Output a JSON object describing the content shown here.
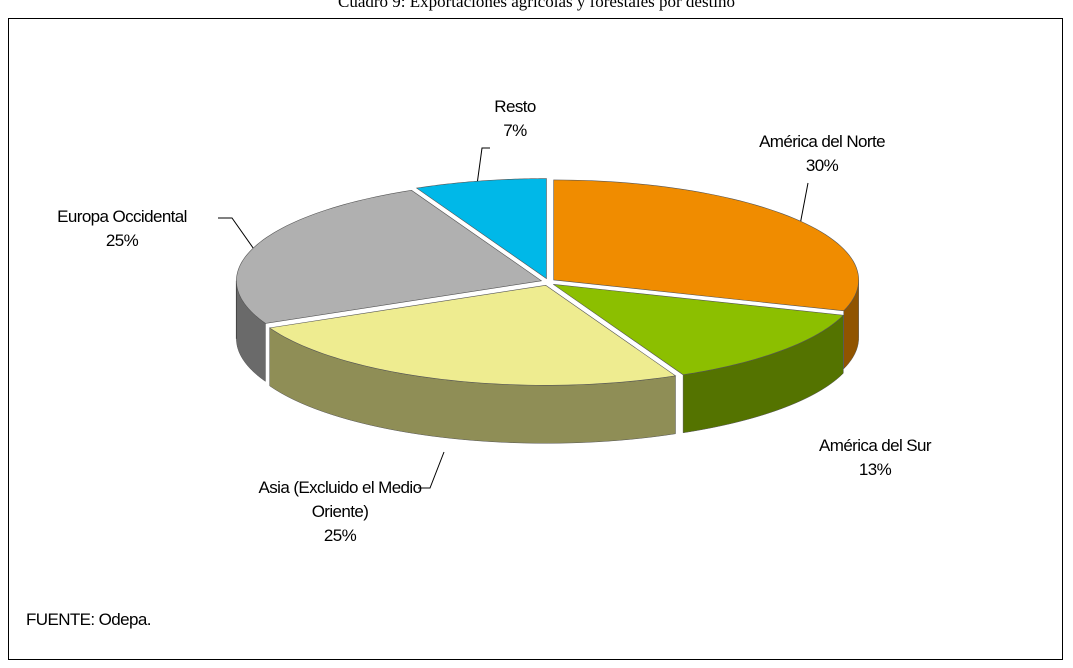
{
  "chart_data": {
    "type": "pie",
    "title": "Cuadro 9: Exportaciones agrícolas y forestales por destino",
    "categories": [
      "América del Norte",
      "América del Sur",
      "Asia (Excluido el Medio Oriente)",
      "Europa Occidental",
      "Resto"
    ],
    "values": [
      30,
      13,
      25,
      25,
      7
    ],
    "value_labels": [
      "30%",
      "13%",
      "25%",
      "25%",
      "7%"
    ],
    "colors": [
      "#f08c00",
      "#8cbf00",
      "#eeec90",
      "#b0b0b0",
      "#00b8e8"
    ],
    "source": "FUENTE: Odepa."
  }
}
